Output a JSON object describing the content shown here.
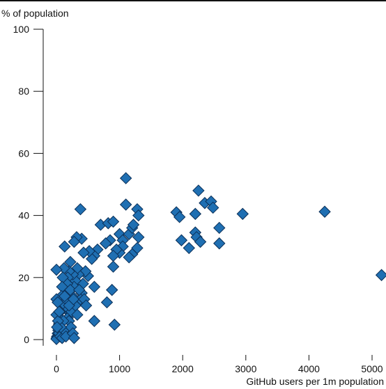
{
  "chart_data": {
    "type": "scatter",
    "title": "",
    "ylabel": "% of population",
    "xlabel": "GitHub users per 1m population",
    "xlim": [
      -100,
      5200
    ],
    "ylim": [
      -2,
      100
    ],
    "x_ticks": [
      0,
      1000,
      2000,
      3000,
      4000,
      5000
    ],
    "x_tick_labels": [
      "0",
      "1000",
      "2000",
      "3000",
      "4000",
      "5000"
    ],
    "y_ticks": [
      0,
      20,
      40,
      60,
      80,
      100
    ],
    "y_tick_labels": [
      "0",
      "20",
      "40",
      "60",
      "80",
      "100"
    ],
    "grid": false,
    "marker": "diamond",
    "colors": {
      "marker_fill": "#1f6fb2",
      "marker_stroke": "#0b2f57",
      "axis": "#111111"
    },
    "points": [
      {
        "x": 1100,
        "y": 52
      },
      {
        "x": 380,
        "y": 42
      },
      {
        "x": 1100,
        "y": 43.5
      },
      {
        "x": 1280,
        "y": 42
      },
      {
        "x": 1300,
        "y": 40
      },
      {
        "x": 1900,
        "y": 41
      },
      {
        "x": 1950,
        "y": 39.5
      },
      {
        "x": 2250,
        "y": 48
      },
      {
        "x": 2350,
        "y": 44
      },
      {
        "x": 2450,
        "y": 44.5
      },
      {
        "x": 2480,
        "y": 42.5
      },
      {
        "x": 2200,
        "y": 40.5
      },
      {
        "x": 2950,
        "y": 40.5
      },
      {
        "x": 4250,
        "y": 41.2
      },
      {
        "x": 5150,
        "y": 20.8
      },
      {
        "x": 2580,
        "y": 36
      },
      {
        "x": 2580,
        "y": 31
      },
      {
        "x": 2200,
        "y": 34.5
      },
      {
        "x": 2220,
        "y": 33
      },
      {
        "x": 2280,
        "y": 31.5
      },
      {
        "x": 1980,
        "y": 32
      },
      {
        "x": 2100,
        "y": 29.5
      },
      {
        "x": 700,
        "y": 37
      },
      {
        "x": 820,
        "y": 37.5
      },
      {
        "x": 900,
        "y": 38
      },
      {
        "x": 1000,
        "y": 34
      },
      {
        "x": 1050,
        "y": 32
      },
      {
        "x": 1150,
        "y": 34
      },
      {
        "x": 1200,
        "y": 36
      },
      {
        "x": 1220,
        "y": 37
      },
      {
        "x": 1300,
        "y": 33
      },
      {
        "x": 1280,
        "y": 29.5
      },
      {
        "x": 1200,
        "y": 27.5
      },
      {
        "x": 1150,
        "y": 26.5
      },
      {
        "x": 1050,
        "y": 30
      },
      {
        "x": 1000,
        "y": 28
      },
      {
        "x": 950,
        "y": 29
      },
      {
        "x": 900,
        "y": 27
      },
      {
        "x": 900,
        "y": 23.5
      },
      {
        "x": 850,
        "y": 32
      },
      {
        "x": 780,
        "y": 31
      },
      {
        "x": 650,
        "y": 29
      },
      {
        "x": 600,
        "y": 27
      },
      {
        "x": 560,
        "y": 26
      },
      {
        "x": 520,
        "y": 28.5
      },
      {
        "x": 430,
        "y": 28
      },
      {
        "x": 400,
        "y": 32.5
      },
      {
        "x": 320,
        "y": 33
      },
      {
        "x": 280,
        "y": 31.5
      },
      {
        "x": 130,
        "y": 30
      },
      {
        "x": 880,
        "y": 16
      },
      {
        "x": 800,
        "y": 12
      },
      {
        "x": 600,
        "y": 17
      },
      {
        "x": 600,
        "y": 6
      },
      {
        "x": 920,
        "y": 4.8
      },
      {
        "x": 500,
        "y": 20.5
      },
      {
        "x": 460,
        "y": 22
      },
      {
        "x": 420,
        "y": 18
      },
      {
        "x": 400,
        "y": 15
      },
      {
        "x": 380,
        "y": 13
      },
      {
        "x": 350,
        "y": 21
      },
      {
        "x": 330,
        "y": 23
      },
      {
        "x": 300,
        "y": 19
      },
      {
        "x": 280,
        "y": 17
      },
      {
        "x": 260,
        "y": 21
      },
      {
        "x": 250,
        "y": 14
      },
      {
        "x": 220,
        "y": 25
      },
      {
        "x": 200,
        "y": 22
      },
      {
        "x": 180,
        "y": 20
      },
      {
        "x": 170,
        "y": 18
      },
      {
        "x": 160,
        "y": 15
      },
      {
        "x": 150,
        "y": 12
      },
      {
        "x": 140,
        "y": 10
      },
      {
        "x": 120,
        "y": 23
      },
      {
        "x": 100,
        "y": 20
      },
      {
        "x": 90,
        "y": 17
      },
      {
        "x": 80,
        "y": 14
      },
      {
        "x": 70,
        "y": 11
      },
      {
        "x": 60,
        "y": 9
      },
      {
        "x": 50,
        "y": 7
      },
      {
        "x": 40,
        "y": 5
      },
      {
        "x": 30,
        "y": 3
      },
      {
        "x": 20,
        "y": 2
      },
      {
        "x": 10,
        "y": 1
      },
      {
        "x": 5,
        "y": 0.5
      },
      {
        "x": 0,
        "y": 0.2
      },
      {
        "x": 0,
        "y": 13
      },
      {
        "x": 0,
        "y": 22.5
      },
      {
        "x": 0,
        "y": 8
      },
      {
        "x": 20,
        "y": 12
      },
      {
        "x": 40,
        "y": 2
      },
      {
        "x": 60,
        "y": 1
      },
      {
        "x": 90,
        "y": 0.5
      },
      {
        "x": 120,
        "y": 3
      },
      {
        "x": 150,
        "y": 1
      },
      {
        "x": 180,
        "y": 7
      },
      {
        "x": 200,
        "y": 6
      },
      {
        "x": 230,
        "y": 4
      },
      {
        "x": 260,
        "y": 2
      },
      {
        "x": 280,
        "y": 0.5
      },
      {
        "x": 240,
        "y": 9
      },
      {
        "x": 300,
        "y": 11
      },
      {
        "x": 330,
        "y": 8
      },
      {
        "x": 220,
        "y": 16
      },
      {
        "x": 110,
        "y": 6
      },
      {
        "x": 70,
        "y": 4
      },
      {
        "x": 25,
        "y": 6
      },
      {
        "x": 10,
        "y": 4
      },
      {
        "x": 45,
        "y": 9
      },
      {
        "x": 130,
        "y": 14
      },
      {
        "x": 200,
        "y": 11
      },
      {
        "x": 270,
        "y": 13
      },
      {
        "x": 360,
        "y": 16
      },
      {
        "x": 440,
        "y": 13
      },
      {
        "x": 470,
        "y": 11
      }
    ]
  }
}
